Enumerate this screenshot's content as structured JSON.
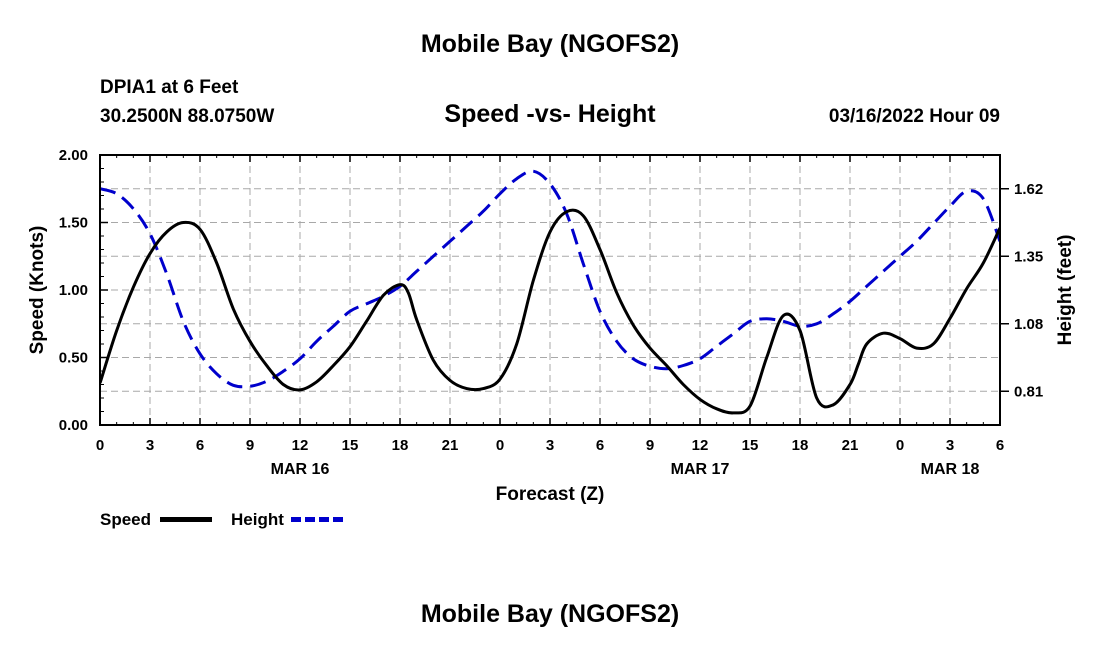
{
  "header": {
    "title": "Mobile Bay (NGOFS2)",
    "station": "DPIA1 at 6 Feet",
    "location": "30.2500N  88.0750W",
    "datetime": "03/16/2022 Hour 09",
    "footer_title": "Mobile Bay (NGOFS2)"
  },
  "colors": {
    "speed": "#000000",
    "height": "#0000cc",
    "grid": "#a8a8a8"
  },
  "chart_data": {
    "type": "line",
    "title": "Speed -vs- Height",
    "xlabel": "Forecast (Z)",
    "ylabel": "Speed (Knots)",
    "y2label": "Height (feet)",
    "x_unit": "hours from 00Z Mar 16",
    "xlim": [
      0,
      54
    ],
    "ylim": [
      0,
      2
    ],
    "y2lim": [
      0.675,
      1.755
    ],
    "x_ticks": [
      0,
      3,
      6,
      9,
      12,
      15,
      18,
      21,
      24,
      27,
      30,
      33,
      36,
      39,
      42,
      45,
      48,
      51,
      54
    ],
    "x_tick_labels": [
      "0",
      "3",
      "6",
      "9",
      "12",
      "15",
      "18",
      "21",
      "0",
      "3",
      "6",
      "9",
      "12",
      "15",
      "18",
      "21",
      "0",
      "3",
      "6"
    ],
    "date_labels": [
      {
        "x": 12,
        "label": "MAR 16"
      },
      {
        "x": 36,
        "label": "MAR 17"
      },
      {
        "x": 51,
        "label": "MAR 18"
      }
    ],
    "y_ticks": [
      0,
      0.5,
      1,
      1.5,
      2
    ],
    "y_tick_labels": [
      "0.00",
      "0.50",
      "1.00",
      "1.50",
      "2.00"
    ],
    "y2_ticks": [
      0.81,
      1.08,
      1.35,
      1.62
    ],
    "y2_tick_labels": [
      "0.81",
      "1.08",
      "1.35",
      "1.62"
    ],
    "grid": true,
    "series": [
      {
        "name": "Speed",
        "axis": "left",
        "x": [
          0,
          1,
          2,
          3,
          4,
          5,
          6,
          7,
          8,
          9,
          10,
          11,
          12,
          13,
          14,
          15,
          16,
          17,
          18,
          18.5,
          19,
          20,
          21,
          22,
          23,
          24,
          25,
          26,
          27,
          28,
          29,
          30,
          31,
          32,
          33,
          34,
          35,
          36,
          37,
          38,
          39,
          40,
          41,
          42,
          43,
          44,
          45,
          45.5,
          46,
          47,
          48,
          49,
          50,
          51,
          52,
          53,
          54
        ],
        "values": [
          0.31,
          0.7,
          1.02,
          1.27,
          1.43,
          1.5,
          1.45,
          1.2,
          0.86,
          0.62,
          0.44,
          0.3,
          0.26,
          0.32,
          0.44,
          0.58,
          0.77,
          0.96,
          1.04,
          0.98,
          0.78,
          0.48,
          0.33,
          0.27,
          0.27,
          0.34,
          0.6,
          1.07,
          1.43,
          1.58,
          1.55,
          1.3,
          0.98,
          0.74,
          0.57,
          0.44,
          0.3,
          0.19,
          0.12,
          0.09,
          0.14,
          0.5,
          0.81,
          0.7,
          0.2,
          0.15,
          0.3,
          0.45,
          0.6,
          0.68,
          0.64,
          0.57,
          0.6,
          0.79,
          1.01,
          1.2,
          1.46
        ]
      },
      {
        "name": "Height",
        "axis": "right",
        "x": [
          0,
          1,
          2,
          3,
          4,
          5,
          6,
          7,
          8,
          9,
          10,
          11,
          12,
          13,
          14,
          15,
          16,
          17,
          18,
          19,
          20,
          21,
          22,
          23,
          24,
          25,
          26,
          27,
          28,
          29,
          30,
          31,
          32,
          33,
          34,
          35,
          36,
          37,
          38,
          39,
          40,
          41,
          42,
          43,
          44,
          45,
          46,
          47,
          48,
          49,
          50,
          51,
          52,
          53,
          54
        ],
        "values": [
          1.62,
          1.6,
          1.54,
          1.44,
          1.28,
          1.09,
          0.96,
          0.88,
          0.834,
          0.83,
          0.85,
          0.89,
          0.94,
          1.01,
          1.07,
          1.13,
          1.16,
          1.19,
          1.23,
          1.29,
          1.35,
          1.41,
          1.47,
          1.53,
          1.6,
          1.66,
          1.69,
          1.64,
          1.52,
          1.32,
          1.13,
          1.01,
          0.94,
          0.91,
          0.9,
          0.913,
          0.94,
          0.99,
          1.04,
          1.09,
          1.1,
          1.09,
          1.07,
          1.08,
          1.12,
          1.17,
          1.23,
          1.29,
          1.35,
          1.41,
          1.48,
          1.55,
          1.61,
          1.58,
          1.41
        ]
      }
    ],
    "legend": "bottom-left"
  }
}
